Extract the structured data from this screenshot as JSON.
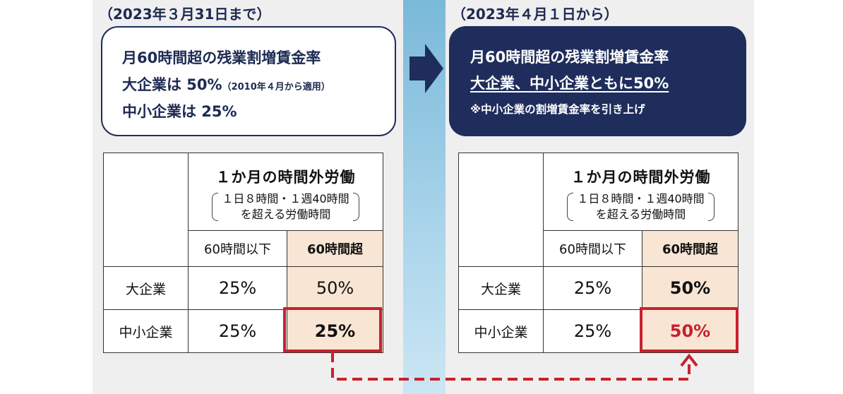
{
  "left": {
    "heading": "（2023年３月31日まで）",
    "box": {
      "line1": "月60時間超の残業割増賃金率",
      "line2": "大企業は 50%",
      "line2_note": "（2010年４月から適用）",
      "line3": "中小企業は 25%"
    },
    "table": {
      "header_title": "１か月の時間外労働",
      "header_sub1": "１日８時間・１週40時間",
      "header_sub2": "を超える労働時間",
      "col_under60": "60時間以下",
      "col_over60": "60時間超",
      "rows": [
        {
          "label": "大企業",
          "under60": "25%",
          "over60": "50%"
        },
        {
          "label": "中小企業",
          "under60": "25%",
          "over60": "25%"
        }
      ]
    }
  },
  "right": {
    "heading": "（2023年４月１日から）",
    "box": {
      "line1": "月60時間超の残業割増賃金率",
      "line2": "大企業、中小企業ともに50%",
      "line3": "※中小企業の割増賃金率を引き上げ"
    },
    "table": {
      "header_title": "１か月の時間外労働",
      "header_sub1": "１日８時間・１週40時間",
      "header_sub2": "を超える労働時間",
      "col_under60": "60時間以下",
      "col_over60": "60時間超",
      "rows": [
        {
          "label": "大企業",
          "under60": "25%",
          "over60": "50%"
        },
        {
          "label": "中小企業",
          "under60": "25%",
          "over60": "50%"
        }
      ]
    }
  },
  "colors": {
    "navy": "#1f2d5c",
    "accent_red": "#c8202e",
    "peach": "#f8e5d4",
    "divider_blue": "#7ab9d8"
  }
}
